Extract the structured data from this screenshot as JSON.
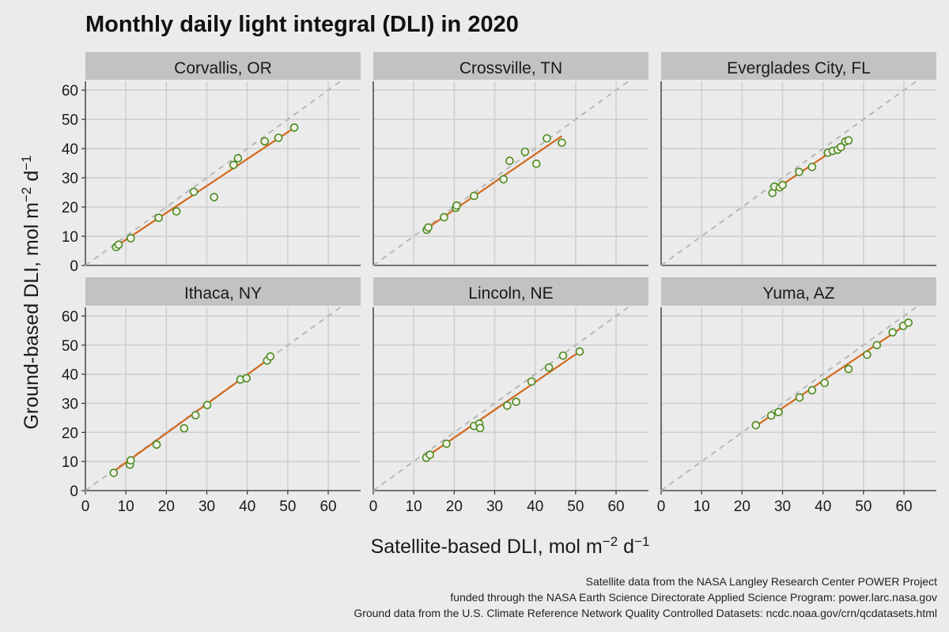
{
  "chart_data": {
    "type": "scatter",
    "title": "Monthly daily light integral (DLI) in 2020",
    "xlabel": "Satellite-based DLI, mol m",
    "ylabel": "Ground-based DLI, mol m",
    "unit_superscripts": {
      "m_exp": "−2",
      "d": "d",
      "d_exp": "−1"
    },
    "xlim": [
      0,
      68
    ],
    "ylim": [
      0,
      63
    ],
    "ticks": [
      0,
      10,
      20,
      30,
      40,
      50,
      60
    ],
    "grid": true,
    "reference_line": "y = x (dashed)",
    "point_color": "#4a8a1f",
    "fit_color": "#d2691e",
    "ref_color": "#b3b3b3",
    "strip_color": "#c2c2c2",
    "panels": [
      {
        "name": "Corvallis, OR",
        "points": [
          [
            7.6,
            6.3
          ],
          [
            8.2,
            7.1
          ],
          [
            11.2,
            9.3
          ],
          [
            18.1,
            16.3
          ],
          [
            22.5,
            18.5
          ],
          [
            26.8,
            25.2
          ],
          [
            31.8,
            23.4
          ],
          [
            36.6,
            34.4
          ],
          [
            37.7,
            36.7
          ],
          [
            44.3,
            42.5
          ],
          [
            47.7,
            43.7
          ],
          [
            51.6,
            47.2
          ]
        ],
        "fit": [
          [
            7.6,
            6.6
          ],
          [
            51.6,
            47.1
          ]
        ]
      },
      {
        "name": "Crossville, TN",
        "points": [
          [
            13.2,
            12.2
          ],
          [
            13.6,
            13.0
          ],
          [
            17.5,
            16.5
          ],
          [
            20.4,
            19.7
          ],
          [
            20.6,
            20.5
          ],
          [
            24.9,
            23.8
          ],
          [
            32.2,
            29.5
          ],
          [
            33.7,
            35.8
          ],
          [
            37.5,
            38.9
          ],
          [
            40.3,
            34.8
          ],
          [
            42.9,
            43.5
          ],
          [
            46.6,
            42.0
          ]
        ],
        "fit": [
          [
            13.2,
            12.6
          ],
          [
            46.6,
            44.3
          ]
        ]
      },
      {
        "name": "Everglades City, FL",
        "points": [
          [
            27.5,
            24.8
          ],
          [
            28.0,
            27.0
          ],
          [
            29.3,
            26.7
          ],
          [
            30.0,
            27.5
          ],
          [
            34.1,
            32.0
          ],
          [
            37.3,
            33.7
          ],
          [
            41.2,
            38.6
          ],
          [
            42.4,
            39.2
          ],
          [
            43.6,
            39.6
          ],
          [
            44.4,
            40.5
          ],
          [
            45.5,
            42.4
          ],
          [
            46.3,
            42.8
          ]
        ],
        "fit": [
          [
            27.5,
            25.4
          ],
          [
            46.3,
            42.9
          ]
        ]
      },
      {
        "name": "Ithaca, NY",
        "points": [
          [
            7.0,
            6.1
          ],
          [
            11.0,
            8.9
          ],
          [
            11.2,
            10.4
          ],
          [
            17.6,
            15.8
          ],
          [
            24.4,
            21.4
          ],
          [
            27.2,
            25.9
          ],
          [
            30.1,
            29.4
          ],
          [
            38.3,
            38.2
          ],
          [
            39.8,
            38.6
          ],
          [
            44.9,
            44.7
          ],
          [
            45.7,
            46.1
          ]
        ],
        "fit": [
          [
            7.0,
            6.6
          ],
          [
            45.9,
            45.8
          ]
        ]
      },
      {
        "name": "Lincoln, NE",
        "points": [
          [
            13.1,
            11.3
          ],
          [
            14.0,
            12.3
          ],
          [
            18.1,
            16.1
          ],
          [
            24.9,
            22.2
          ],
          [
            26.2,
            23.0
          ],
          [
            26.4,
            21.5
          ],
          [
            33.1,
            29.2
          ],
          [
            35.3,
            30.5
          ],
          [
            39.1,
            37.5
          ],
          [
            43.4,
            42.3
          ],
          [
            46.9,
            46.4
          ],
          [
            51.0,
            47.8
          ]
        ],
        "fit": [
          [
            13.1,
            11.6
          ],
          [
            51.0,
            47.8
          ]
        ]
      },
      {
        "name": "Yuma, AZ",
        "points": [
          [
            23.4,
            22.5
          ],
          [
            27.2,
            25.8
          ],
          [
            29.0,
            27.0
          ],
          [
            34.2,
            32.0
          ],
          [
            37.3,
            34.5
          ],
          [
            40.4,
            37.0
          ],
          [
            46.3,
            41.8
          ],
          [
            50.9,
            46.7
          ],
          [
            53.3,
            50.0
          ],
          [
            57.2,
            54.4
          ],
          [
            59.8,
            56.6
          ],
          [
            61.1,
            57.7
          ]
        ],
        "fit": [
          [
            23.4,
            22.2
          ],
          [
            61.1,
            57.6
          ]
        ]
      }
    ]
  },
  "caption_lines": [
    "Satellite data from the NASA Langley Research Center POWER Project",
    "funded through the NASA Earth Science Directorate Applied Science Program: power.larc.nasa.gov",
    "Ground data from the U.S. Climate Reference Network Quality Controlled Datasets: ncdc.noaa.gov/crn/qcdatasets.html"
  ]
}
